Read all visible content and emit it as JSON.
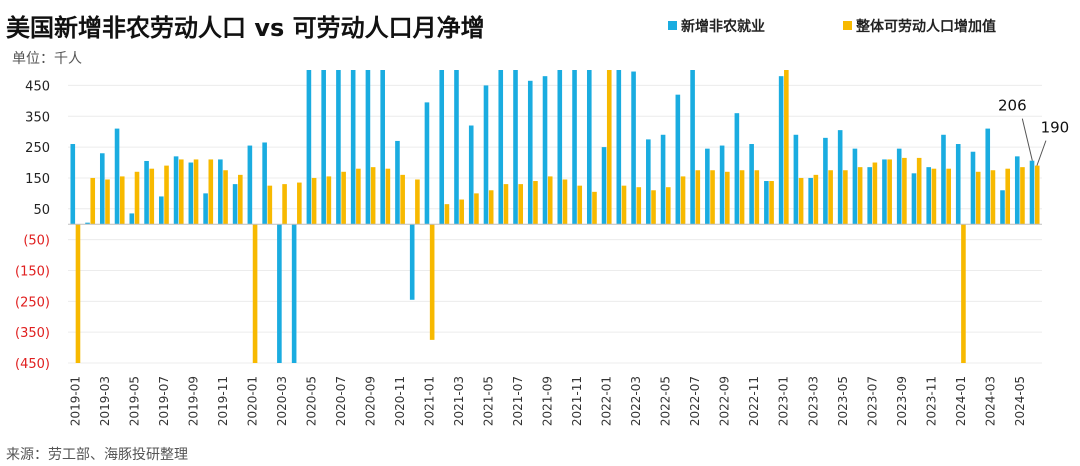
{
  "colors": {
    "nfp": "#1aace0",
    "labor": "#f7b900",
    "neg_tick": "#e02020",
    "axis": "#bfbfbf"
  },
  "chart_data": {
    "type": "bar",
    "title": "美国新增非农劳动人口 vs 可劳动人口月净增",
    "unit_label": "单位：千人",
    "source": "来源：劳工部、海豚投研整理",
    "ylim": [
      -450,
      500
    ],
    "yticks": [
      450,
      350,
      250,
      150,
      50,
      -50,
      -150,
      -250,
      -350,
      -450
    ],
    "ytick_labels": [
      "450",
      "350",
      "250",
      "150",
      "50",
      "(50)",
      "(150)",
      "(250)",
      "(350)",
      "(450)"
    ],
    "legend_position": "top-right",
    "categories": [
      "2019-01",
      "2019-02",
      "2019-03",
      "2019-04",
      "2019-05",
      "2019-06",
      "2019-07",
      "2019-08",
      "2019-09",
      "2019-10",
      "2019-11",
      "2019-12",
      "2020-01",
      "2020-02",
      "2020-03",
      "2020-04",
      "2020-05",
      "2020-06",
      "2020-07",
      "2020-08",
      "2020-09",
      "2020-10",
      "2020-11",
      "2020-12",
      "2021-01",
      "2021-02",
      "2021-03",
      "2021-04",
      "2021-05",
      "2021-06",
      "2021-07",
      "2021-08",
      "2021-09",
      "2021-10",
      "2021-11",
      "2021-12",
      "2022-01",
      "2022-02",
      "2022-03",
      "2022-04",
      "2022-05",
      "2022-06",
      "2022-07",
      "2022-08",
      "2022-09",
      "2022-10",
      "2022-11",
      "2022-12",
      "2023-01",
      "2023-02",
      "2023-03",
      "2023-04",
      "2023-05",
      "2023-06",
      "2023-07",
      "2023-08",
      "2023-09",
      "2023-10",
      "2023-11",
      "2023-12",
      "2024-01",
      "2024-02",
      "2024-03",
      "2024-04",
      "2024-05",
      "2024-06"
    ],
    "xtick_labels": [
      "2019-01",
      "2019-03",
      "2019-05",
      "2019-07",
      "2019-09",
      "2019-11",
      "2020-01",
      "2020-03",
      "2020-05",
      "2020-07",
      "2020-09",
      "2020-11",
      "2021-01",
      "2021-03",
      "2021-05",
      "2021-07",
      "2021-09",
      "2021-11",
      "2022-01",
      "2022-03",
      "2022-05",
      "2022-07",
      "2022-09",
      "2022-11",
      "2023-01",
      "2023-03",
      "2023-05",
      "2023-07",
      "2023-09",
      "2023-11",
      "2024-01",
      "2024-03",
      "2024-05"
    ],
    "series": [
      {
        "name": "新增非农就业",
        "values": [
          260,
          5,
          230,
          310,
          35,
          205,
          90,
          220,
          200,
          100,
          210,
          130,
          255,
          265,
          -450,
          -450,
          500,
          500,
          500,
          500,
          500,
          500,
          270,
          -245,
          395,
          500,
          500,
          320,
          450,
          500,
          500,
          465,
          480,
          500,
          500,
          500,
          250,
          500,
          495,
          275,
          290,
          420,
          500,
          245,
          255,
          360,
          260,
          140,
          480,
          290,
          150,
          280,
          305,
          245,
          185,
          210,
          245,
          165,
          185,
          290,
          260,
          235,
          310,
          110,
          220,
          206
        ]
      },
      {
        "name": "整体可劳动人口增加值",
        "values": [
          -450,
          150,
          145,
          155,
          170,
          180,
          190,
          210,
          210,
          210,
          175,
          160,
          -450,
          125,
          130,
          135,
          150,
          155,
          170,
          180,
          185,
          180,
          160,
          145,
          -375,
          65,
          80,
          100,
          110,
          130,
          130,
          140,
          155,
          145,
          125,
          105,
          500,
          125,
          120,
          110,
          120,
          155,
          175,
          175,
          170,
          175,
          175,
          140,
          500,
          150,
          160,
          175,
          175,
          185,
          200,
          210,
          215,
          215,
          180,
          180,
          -450,
          170,
          175,
          180,
          185,
          190
        ]
      }
    ],
    "annotations": [
      {
        "text": "206",
        "series": 0,
        "category": "2024-06"
      },
      {
        "text": "190",
        "series": 1,
        "category": "2024-06"
      }
    ]
  }
}
